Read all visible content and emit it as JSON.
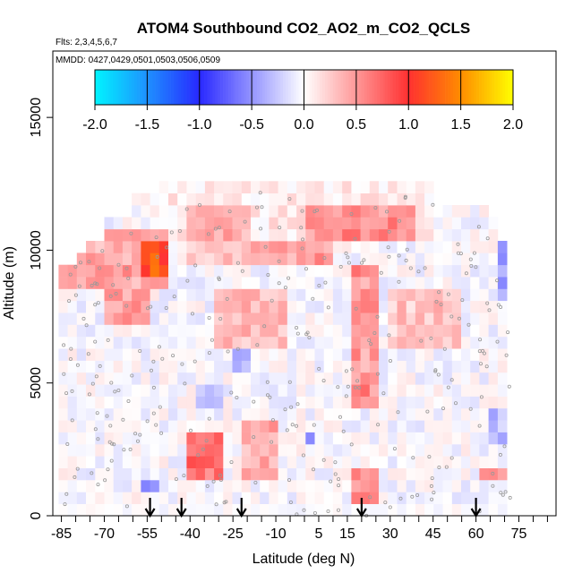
{
  "chart_data": {
    "type": "heatmap",
    "title": "ATOM4 Southbound CO2_AO2_m_CO2_QCLS",
    "flights_label": "Flts: 2,3,4,5,6,7",
    "mmdd_label": "MMDD: 0427,0429,0501,0503,0506,0509",
    "xlabel": "Latitude (deg N)",
    "ylabel": "Altitude (m)",
    "xlim": [
      -88,
      88
    ],
    "ylim": [
      0,
      17500
    ],
    "x_ticks": [
      -85,
      -70,
      -55,
      -40,
      -25,
      -10,
      5,
      15,
      30,
      45,
      60,
      75
    ],
    "x_tick_labels": [
      "-85",
      "-70",
      "-55",
      "-40",
      "-25",
      "-10",
      "5",
      "15",
      "30",
      "45",
      "60",
      "75"
    ],
    "y_ticks": [
      0,
      5000,
      10000,
      15000
    ],
    "y_tick_labels": [
      "0",
      "5000",
      "10000",
      "15000"
    ],
    "colorbar": {
      "range": [
        -2.0,
        2.0
      ],
      "ticks": [
        -2.0,
        -1.5,
        -1.0,
        -0.5,
        0.0,
        0.5,
        1.0,
        1.5,
        2.0
      ],
      "tick_labels": [
        "-2.0",
        "-1.5",
        "-1.0",
        "-0.5",
        "0.0",
        "0.5",
        "1.0",
        "1.5",
        "2.0"
      ],
      "colors": {
        "min": "#00f5ff",
        "low": "#1e90ff",
        "mid_low": "#2828ff",
        "zero": "#ffffff",
        "mid_high": "#ff3030",
        "high": "#ff8c00",
        "max": "#ffff00"
      }
    },
    "arrows_latitude": [
      -54,
      -43,
      -22,
      20,
      60
    ],
    "heatmap_regions": [
      {
        "lat": [
          -85,
          -48
        ],
        "alt": [
          8500,
          11000
        ],
        "value": 0.45
      },
      {
        "lat": [
          -58,
          -48
        ],
        "alt": [
          9000,
          10500
        ],
        "value": 0.75
      },
      {
        "lat": [
          -70,
          -55
        ],
        "alt": [
          7000,
          8500
        ],
        "value": 0.5
      },
      {
        "lat": [
          -40,
          -20
        ],
        "alt": [
          9500,
          11500
        ],
        "value": 0.3
      },
      {
        "lat": [
          -20,
          10
        ],
        "alt": [
          9500,
          10500
        ],
        "value": 0.5
      },
      {
        "lat": [
          0,
          40
        ],
        "alt": [
          10500,
          11800
        ],
        "value": 0.45
      },
      {
        "lat": [
          15,
          25
        ],
        "alt": [
          4000,
          9500
        ],
        "value": 0.55
      },
      {
        "lat": [
          -40,
          -28
        ],
        "alt": [
          1200,
          3000
        ],
        "value": 0.7
      },
      {
        "lat": [
          -22,
          -8
        ],
        "alt": [
          1200,
          3500
        ],
        "value": 0.45
      },
      {
        "lat": [
          15,
          25
        ],
        "alt": [
          600,
          2000
        ],
        "value": 0.65
      },
      {
        "lat": [
          60,
          70
        ],
        "alt": [
          1500,
          2000
        ],
        "value": 0.55
      },
      {
        "lat": [
          -30,
          -5
        ],
        "alt": [
          6500,
          8500
        ],
        "value": 0.35
      },
      {
        "lat": [
          30,
          55
        ],
        "alt": [
          6500,
          8500
        ],
        "value": 0.3
      },
      {
        "lat": [
          -25,
          -18
        ],
        "alt": [
          5500,
          6500
        ],
        "value": -0.45
      },
      {
        "lat": [
          -38,
          -28
        ],
        "alt": [
          4000,
          4800
        ],
        "value": -0.35
      },
      {
        "lat": [
          67,
          72
        ],
        "alt": [
          8000,
          10500
        ],
        "value": -0.5
      },
      {
        "lat": [
          -56,
          -52
        ],
        "alt": [
          900,
          1300
        ],
        "value": -0.6
      },
      {
        "lat": [
          0,
          5
        ],
        "alt": [
          2500,
          3200
        ],
        "value": -0.5
      },
      {
        "lat": [
          65,
          72
        ],
        "alt": [
          2500,
          4000
        ],
        "value": -0.3
      }
    ]
  }
}
